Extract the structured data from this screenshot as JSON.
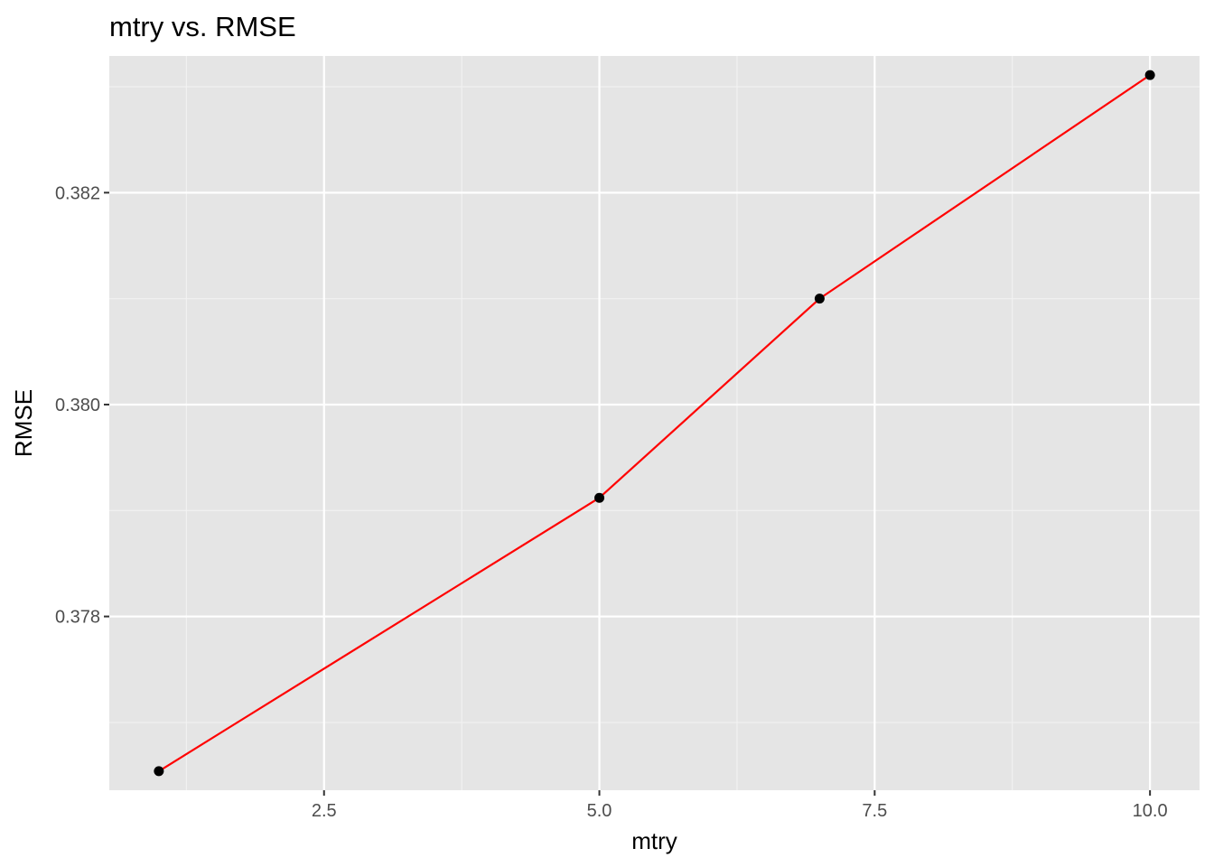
{
  "chart_data": {
    "type": "line",
    "title": "mtry vs. RMSE",
    "xlabel": "mtry",
    "ylabel": "RMSE",
    "x": [
      1,
      5,
      7,
      10
    ],
    "series": [
      {
        "values": [
          0.37654,
          0.37912,
          0.381,
          0.38311
        ]
      }
    ],
    "xlim": [
      0.55,
      10.45
    ],
    "ylim": [
      0.37636,
      0.38329
    ],
    "x_ticks": [
      2.5,
      5.0,
      7.5,
      10.0
    ],
    "x_tick_labels": [
      "2.5",
      "5.0",
      "7.5",
      "10.0"
    ],
    "y_ticks": [
      0.378,
      0.38,
      0.382
    ],
    "y_tick_labels": [
      "0.378",
      "0.380",
      "0.382"
    ],
    "grid": true,
    "legend": "none",
    "colors": {
      "panel_background": "#e5e5e5",
      "grid_major": "#ffffff",
      "grid_minor": "#f2f2f2",
      "line": "#ff0000",
      "point": "#000000",
      "tick": "#333333"
    }
  }
}
